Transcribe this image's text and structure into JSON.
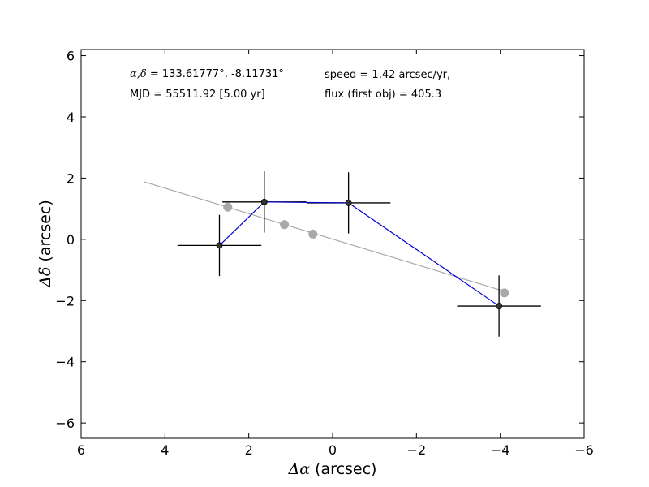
{
  "chart_data": {
    "type": "scatter",
    "xlim": [
      6,
      -6
    ],
    "ylim": [
      -6.5,
      6.2
    ],
    "x_ticks": [
      6,
      4,
      2,
      0,
      -2,
      -4,
      -6
    ],
    "y_ticks": [
      6,
      4,
      2,
      0,
      -2,
      -4,
      -6
    ],
    "x_tick_labels": [
      "6",
      "4",
      "2",
      "0",
      "−2",
      "−4",
      "−6"
    ],
    "y_tick_labels": [
      "6",
      "4",
      "2",
      "0",
      "−2",
      "−4",
      "−6"
    ],
    "xlabel_symbol": "Δα",
    "xlabel_unit": " (arcsec)",
    "ylabel_symbol": "Δδ",
    "ylabel_unit": " (arcsec)",
    "annotations": {
      "coords_symbol": "α,δ",
      "coords_value": " = 133.61777°, -8.11731°",
      "mjd": "MJD = 55511.92 [5.00 yr]",
      "speed": "speed = 1.42 arcsec/yr,",
      "flux": "flux (first obj) = 405.3"
    },
    "fit_line": {
      "color": "#a9a9a9",
      "x": [
        4.5,
        -4.1
      ],
      "y": [
        1.88,
        -1.7
      ]
    },
    "predicted_points": {
      "color": "#a9a9a9",
      "x": [
        2.5,
        1.15,
        0.47,
        -4.1
      ],
      "y": [
        1.05,
        0.48,
        0.17,
        -1.75
      ]
    },
    "observations": {
      "line_color": "#0000cc",
      "point_color": "#333333",
      "x": [
        2.7,
        1.63,
        -0.38,
        -3.97
      ],
      "y": [
        -0.2,
        1.22,
        1.19,
        -2.18
      ],
      "x_err": [
        1.0,
        1.0,
        1.0,
        1.0
      ],
      "y_err": [
        1.0,
        1.0,
        1.0,
        1.0
      ]
    }
  }
}
